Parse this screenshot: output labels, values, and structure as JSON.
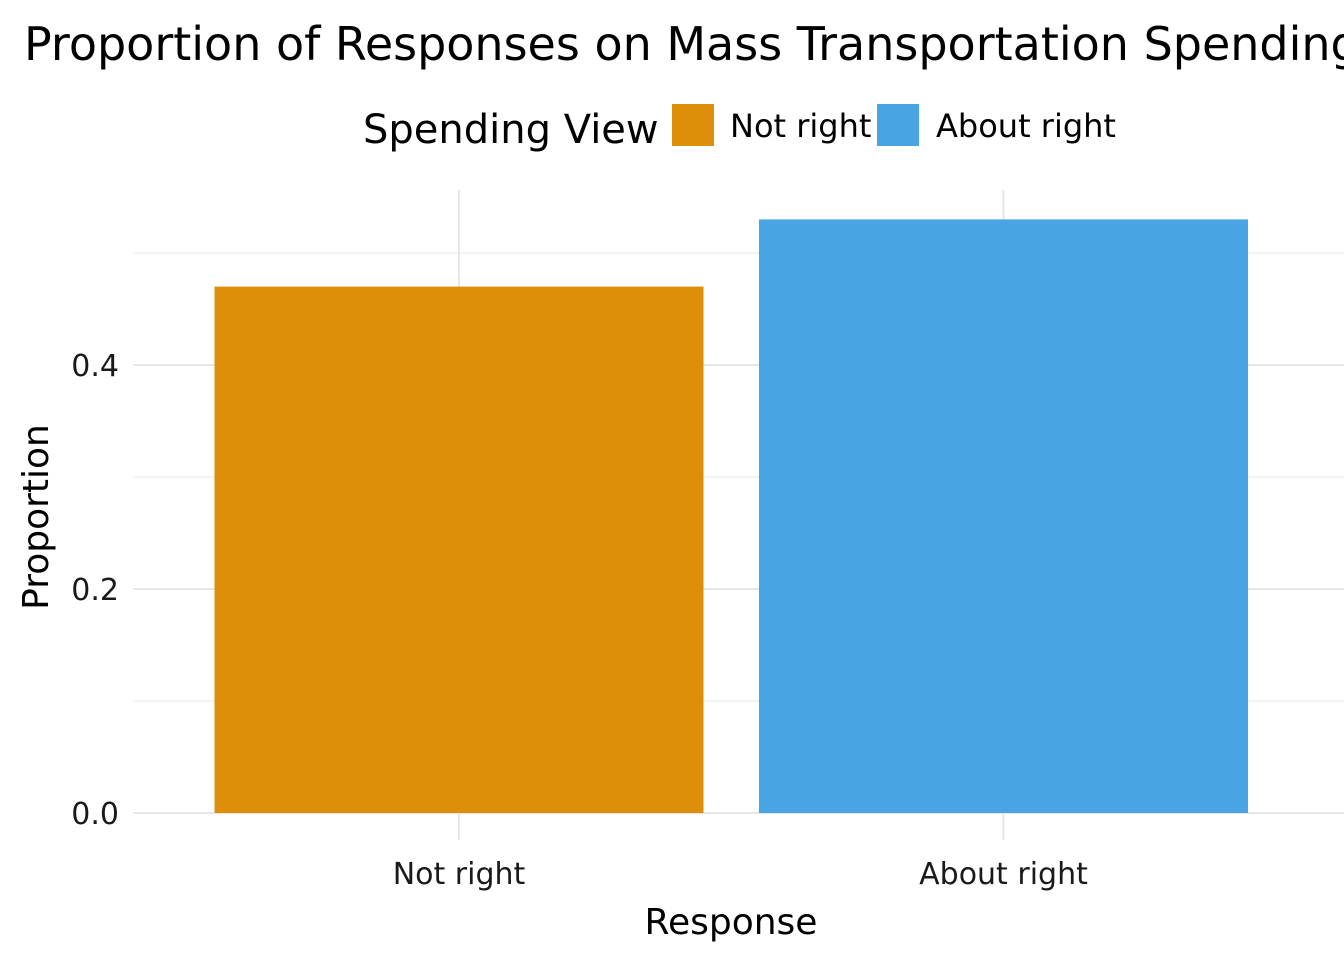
{
  "chart_data": {
    "type": "bar",
    "title": "Proportion of Responses on Mass Transportation Spending",
    "xlabel": "Response",
    "ylabel": "Proportion",
    "categories": [
      "Not right",
      "About right"
    ],
    "values": [
      0.47,
      0.53
    ],
    "ylim": [
      0,
      0.56
    ],
    "yticks": [
      0.0,
      0.2,
      0.4
    ],
    "ytick_labels": [
      "0.0",
      "0.2",
      "0.4"
    ],
    "grid": true,
    "legend": {
      "title": "Spending View",
      "placement": "top",
      "entries": [
        "Not right",
        "About right"
      ]
    },
    "colors": [
      "#DE8F0A",
      "#48A4E2"
    ]
  }
}
